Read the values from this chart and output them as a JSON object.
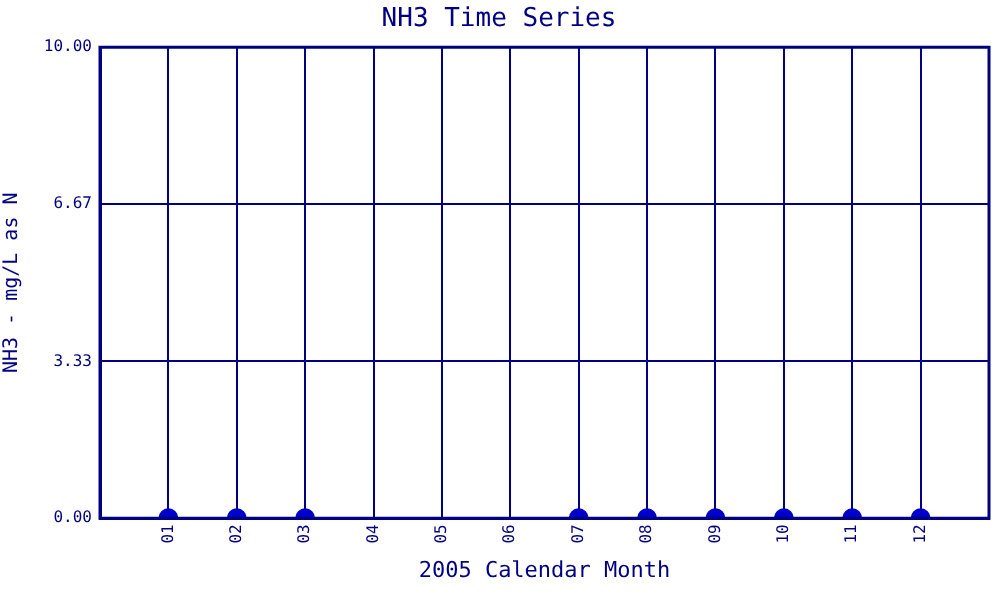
{
  "chart_data": {
    "type": "scatter",
    "title": "NH3 Time Series",
    "xlabel": "2005 Calendar Month",
    "ylabel": "NH3 - mg/L as N",
    "x": [
      1,
      2,
      3,
      4,
      5,
      6,
      7,
      8,
      9,
      10,
      11,
      12
    ],
    "series": [
      {
        "color": "#0000cc",
        "values": [
          0,
          0,
          0,
          null,
          null,
          null,
          0,
          0,
          0,
          0,
          0,
          0
        ]
      }
    ],
    "xlim": [
      0,
      13
    ],
    "xticks": [
      {
        "value": 1,
        "label": "01"
      },
      {
        "value": 2,
        "label": "02"
      },
      {
        "value": 3,
        "label": "03"
      },
      {
        "value": 4,
        "label": "04"
      },
      {
        "value": 5,
        "label": "05"
      },
      {
        "value": 6,
        "label": "06"
      },
      {
        "value": 7,
        "label": "07"
      },
      {
        "value": 8,
        "label": "08"
      },
      {
        "value": 9,
        "label": "09"
      },
      {
        "value": 10,
        "label": "10"
      },
      {
        "value": 11,
        "label": "11"
      },
      {
        "value": 12,
        "label": "12"
      }
    ],
    "ylim": [
      0,
      10
    ],
    "yticks": [
      {
        "value": 0,
        "label": "0.00"
      },
      {
        "value": 3.33,
        "label": "3.33"
      },
      {
        "value": 6.67,
        "label": "6.67"
      },
      {
        "value": 10,
        "label": "10.00"
      }
    ],
    "grid": true,
    "marker": "circle"
  }
}
